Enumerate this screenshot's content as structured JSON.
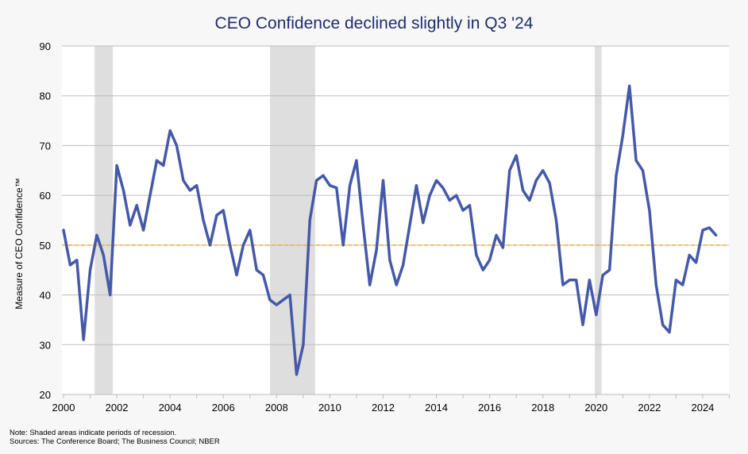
{
  "chart_data": {
    "type": "line",
    "title": "CEO Confidence declined slightly in Q3 '24",
    "ylabel": "Measure of CEO Confidence™",
    "xlabel": "",
    "ylim": [
      20,
      90
    ],
    "xlim": [
      2000,
      2025
    ],
    "yticks": [
      20,
      30,
      40,
      50,
      60,
      70,
      80,
      90
    ],
    "xticks": [
      2000,
      2002,
      2004,
      2006,
      2008,
      2010,
      2012,
      2014,
      2016,
      2018,
      2020,
      2022,
      2024
    ],
    "grid": true,
    "reference_line": {
      "value": 50,
      "color": "#e8b43a"
    },
    "recessions": [
      [
        2001.17,
        2001.85
      ],
      [
        2007.75,
        2009.45
      ],
      [
        2019.95,
        2020.2
      ]
    ],
    "series": [
      {
        "name": "CEO Confidence",
        "color": "#4459a8",
        "start": 2000,
        "frequency": "quarterly",
        "values": [
          53,
          46,
          47,
          31,
          45,
          52,
          48,
          40,
          66,
          61,
          54,
          58,
          53,
          60,
          67,
          66,
          73,
          70,
          63,
          61,
          62,
          55,
          50,
          56,
          57,
          50,
          44,
          50,
          53,
          45,
          44,
          39,
          38,
          39,
          40,
          24,
          30,
          55,
          63,
          64,
          62,
          61.5,
          50,
          62,
          67,
          54,
          42,
          49,
          63,
          47,
          42,
          46,
          54,
          62,
          54.5,
          60,
          63,
          61.5,
          59,
          60,
          57,
          58,
          48,
          45,
          47,
          52,
          49.5,
          65,
          68,
          61,
          59,
          63,
          65,
          62.5,
          55,
          42,
          43,
          43,
          34,
          43,
          36,
          44,
          45,
          64,
          72,
          82,
          67,
          65,
          57,
          42,
          34,
          32.5,
          43,
          42,
          48,
          46.5,
          53,
          53.5,
          52
        ]
      }
    ]
  },
  "notes": {
    "line1": "Note: Shaded areas indicate periods of recession.",
    "line2": "Sources: The Conference Board; The Business Council; NBER"
  }
}
